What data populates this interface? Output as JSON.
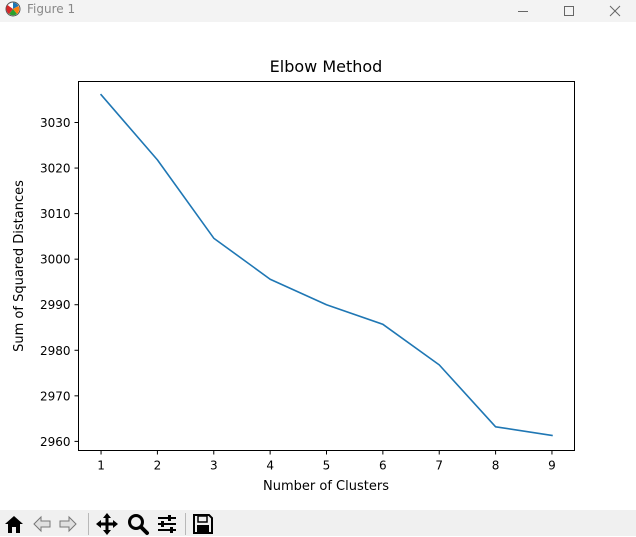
{
  "window": {
    "title": "Figure 1",
    "icons": [
      "matplotlib-logo-icon",
      "minimize-icon",
      "maximize-icon",
      "close-icon"
    ]
  },
  "toolbar": {
    "tools": [
      "home-icon",
      "back-icon",
      "forward-icon",
      "pan-icon",
      "zoom-icon",
      "configure-subplots-icon",
      "save-icon"
    ]
  },
  "colors": {
    "line": "#1f77b4",
    "axes": "#000000",
    "titlebar": "#f3f3f3",
    "toolbar": "#f0f0f0"
  },
  "chart_data": {
    "type": "line",
    "title": "Elbow Method",
    "xlabel": "Number of Clusters",
    "ylabel": "Sum of Squared Distances",
    "xlim": [
      0.6,
      9.4
    ],
    "ylim": [
      2958,
      3039
    ],
    "xticks": [
      1,
      2,
      3,
      4,
      5,
      6,
      7,
      8,
      9
    ],
    "yticks": [
      2960,
      2970,
      2980,
      2990,
      3000,
      3010,
      3020,
      3030
    ],
    "grid": false,
    "series": [
      {
        "x": [
          1,
          2,
          3,
          4,
          5,
          6,
          7,
          8,
          9
        ],
        "values": [
          3036.1,
          3021.8,
          3004.6,
          2995.6,
          2990.0,
          2985.7,
          2976.8,
          2963.2,
          2961.3
        ]
      }
    ]
  }
}
